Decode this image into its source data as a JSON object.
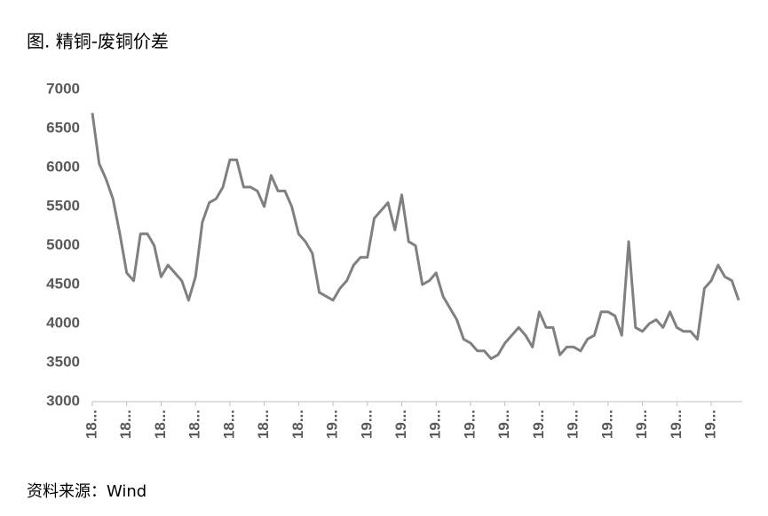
{
  "chart_data": {
    "type": "line",
    "title": "图. 精铜-废铜价差",
    "source": "资料来源：Wind",
    "categories": [
      "18...",
      null,
      null,
      null,
      null,
      "18...",
      null,
      null,
      null,
      null,
      "18...",
      null,
      null,
      null,
      null,
      "18...",
      null,
      null,
      null,
      null,
      "18...",
      null,
      null,
      null,
      null,
      "18...",
      null,
      null,
      null,
      null,
      "18...",
      null,
      null,
      null,
      null,
      "19...",
      null,
      null,
      null,
      null,
      "19...",
      null,
      null,
      null,
      null,
      "19...",
      null,
      null,
      null,
      null,
      "19...",
      null,
      null,
      null,
      null,
      "19...",
      null,
      null,
      null,
      null,
      "19...",
      null,
      null,
      null,
      null,
      "19...",
      null,
      null,
      null,
      null,
      "19...",
      null,
      null,
      null,
      null,
      "19...",
      null,
      null,
      null,
      null,
      "19...",
      null,
      null,
      null,
      null,
      "19...",
      null,
      null,
      null,
      null,
      "19...",
      null,
      null,
      null,
      null
    ],
    "values": [
      6700,
      6050,
      5850,
      5600,
      5150,
      4650,
      4550,
      5150,
      5150,
      5000,
      4600,
      4750,
      4650,
      4550,
      4300,
      4600,
      5300,
      5550,
      5600,
      5750,
      6100,
      6100,
      5750,
      5750,
      5700,
      5500,
      5900,
      5700,
      5700,
      5500,
      5150,
      5050,
      4900,
      4400,
      4350,
      4300,
      4450,
      4550,
      4750,
      4850,
      4850,
      5350,
      5450,
      5550,
      5200,
      5650,
      5050,
      5000,
      4500,
      4550,
      4650,
      4350,
      4200,
      4050,
      3800,
      3750,
      3650,
      3650,
      3550,
      3600,
      3750,
      3850,
      3950,
      3850,
      3700,
      4150,
      3950,
      3950,
      3600,
      3700,
      3700,
      3650,
      3800,
      3850,
      4150,
      4150,
      4100,
      3850,
      5050,
      3950,
      3900,
      4000,
      4050,
      3950,
      4150,
      3950,
      3900,
      3900,
      3800,
      4450,
      4550,
      4750,
      4600,
      4550,
      4300
    ],
    "color": "#808080",
    "ylim": [
      3000,
      7000
    ],
    "yticks": [
      3000,
      3500,
      4000,
      4500,
      5000,
      5500,
      6000,
      6500,
      7000
    ],
    "grid": false
  }
}
